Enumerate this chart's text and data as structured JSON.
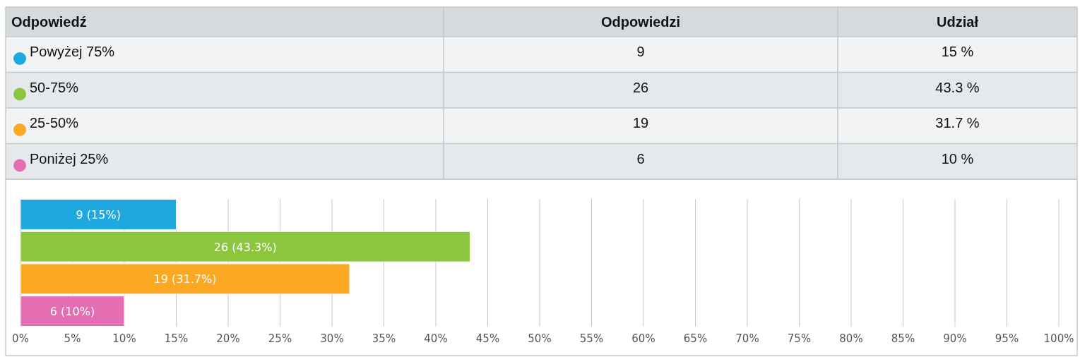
{
  "chart_data": {
    "type": "bar",
    "orientation": "horizontal",
    "categories": [
      null,
      null,
      null,
      null
    ],
    "series": [
      {
        "name": "Powyżej 75%",
        "color": "#1fa8e0",
        "values": [
          15,
          null,
          null,
          null
        ],
        "value_labels": [
          "9 (15%)",
          null,
          null,
          null
        ]
      },
      {
        "name": "50-75%",
        "color": "#8cc63f",
        "values": [
          null,
          43.3,
          null,
          null
        ],
        "value_labels": [
          null,
          "26 (43.3%)",
          null,
          null
        ]
      },
      {
        "name": "25-50%",
        "color": "#fba823",
        "values": [
          null,
          null,
          31.7,
          null
        ],
        "value_labels": [
          null,
          null,
          "19 (31.7%)",
          null
        ]
      },
      {
        "name": "Poniżej 25%",
        "color": "#e56db1",
        "values": [
          null,
          null,
          null,
          10
        ],
        "value_labels": [
          null,
          null,
          null,
          "6 (10%)"
        ]
      }
    ],
    "legend": "top",
    "xlim": [
      0,
      100
    ],
    "xticks": [
      {
        "value": 0,
        "label": "0%"
      },
      {
        "value": 5,
        "label": "5%"
      },
      {
        "value": 10,
        "label": "10%"
      },
      {
        "value": 15,
        "label": "15%"
      },
      {
        "value": 20,
        "label": "20%"
      },
      {
        "value": 25,
        "label": "25%"
      },
      {
        "value": 30,
        "label": "30%"
      },
      {
        "value": 35,
        "label": "35%"
      },
      {
        "value": 40,
        "label": "40%"
      },
      {
        "value": 45,
        "label": "45%"
      },
      {
        "value": 50,
        "label": "50%"
      },
      {
        "value": 55,
        "label": "55%"
      },
      {
        "value": 60,
        "label": "60%"
      },
      {
        "value": 65,
        "label": "65%"
      },
      {
        "value": 70,
        "label": "70%"
      },
      {
        "value": 75,
        "label": "75%"
      },
      {
        "value": 80,
        "label": "80%"
      },
      {
        "value": 85,
        "label": "85%"
      },
      {
        "value": 90,
        "label": "90%"
      },
      {
        "value": 95,
        "label": "95%"
      },
      {
        "value": 100,
        "label": "100%"
      }
    ],
    "grid": "x",
    "annotations": [
      "Odpowiedź",
      "Odpowiedzi",
      "Udział",
      "9",
      "15 %",
      "26",
      "43.3 %",
      "19",
      "31.7 %",
      "6",
      "10 %"
    ]
  }
}
